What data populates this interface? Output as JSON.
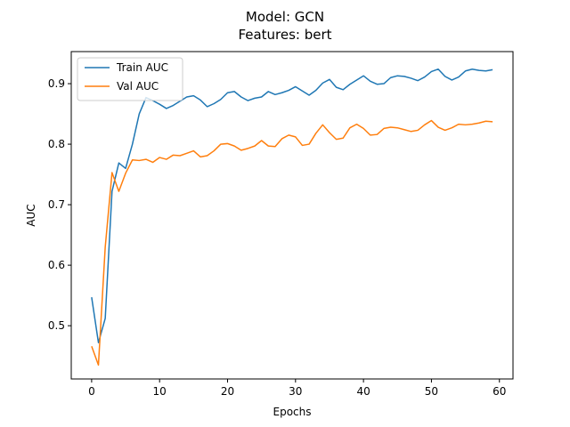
{
  "chart_data": {
    "type": "line",
    "title": "Model: GCN",
    "subtitle": "Features: bert",
    "xlabel": "Epochs",
    "ylabel": "AUC",
    "xlim": [
      -3,
      62
    ],
    "ylim": [
      0.412,
      0.953
    ],
    "xticks": [
      0,
      10,
      20,
      30,
      40,
      50,
      60
    ],
    "yticks": [
      0.5,
      0.6,
      0.7,
      0.8,
      0.9
    ],
    "xtick_labels": [
      "0",
      "10",
      "20",
      "30",
      "40",
      "50",
      "60"
    ],
    "ytick_labels": [
      "0.5",
      "0.6",
      "0.7",
      "0.8",
      "0.9"
    ],
    "grid": false,
    "legend_position": "top-left",
    "x": [
      0,
      1,
      2,
      3,
      4,
      5,
      6,
      7,
      8,
      9,
      10,
      11,
      12,
      13,
      14,
      15,
      16,
      17,
      18,
      19,
      20,
      21,
      22,
      23,
      24,
      25,
      26,
      27,
      28,
      29,
      30,
      31,
      32,
      33,
      34,
      35,
      36,
      37,
      38,
      39,
      40,
      41,
      42,
      43,
      44,
      45,
      46,
      47,
      48,
      49,
      50,
      51,
      52,
      53,
      54,
      55,
      56,
      57,
      58,
      59
    ],
    "series": [
      {
        "name": "Train AUC",
        "color": "#1f77b4",
        "values": [
          0.547,
          0.472,
          0.512,
          0.722,
          0.769,
          0.76,
          0.8,
          0.85,
          0.877,
          0.872,
          0.866,
          0.859,
          0.864,
          0.871,
          0.878,
          0.88,
          0.873,
          0.862,
          0.867,
          0.874,
          0.885,
          0.887,
          0.878,
          0.872,
          0.876,
          0.878,
          0.887,
          0.882,
          0.885,
          0.889,
          0.895,
          0.888,
          0.881,
          0.889,
          0.901,
          0.907,
          0.894,
          0.89,
          0.899,
          0.906,
          0.913,
          0.904,
          0.899,
          0.9,
          0.91,
          0.913,
          0.912,
          0.909,
          0.905,
          0.911,
          0.92,
          0.924,
          0.912,
          0.906,
          0.911,
          0.921,
          0.924,
          0.922,
          0.921,
          0.923
        ]
      },
      {
        "name": "Val AUC",
        "color": "#ff7f0e",
        "values": [
          0.466,
          0.435,
          0.63,
          0.753,
          0.722,
          0.752,
          0.774,
          0.773,
          0.775,
          0.77,
          0.778,
          0.775,
          0.782,
          0.781,
          0.785,
          0.789,
          0.779,
          0.781,
          0.789,
          0.8,
          0.801,
          0.797,
          0.79,
          0.793,
          0.797,
          0.806,
          0.797,
          0.796,
          0.809,
          0.815,
          0.812,
          0.798,
          0.8,
          0.818,
          0.832,
          0.819,
          0.808,
          0.81,
          0.827,
          0.833,
          0.826,
          0.815,
          0.816,
          0.826,
          0.828,
          0.827,
          0.824,
          0.821,
          0.823,
          0.832,
          0.839,
          0.828,
          0.823,
          0.827,
          0.833,
          0.832,
          0.833,
          0.835,
          0.838,
          0.837
        ]
      }
    ]
  }
}
